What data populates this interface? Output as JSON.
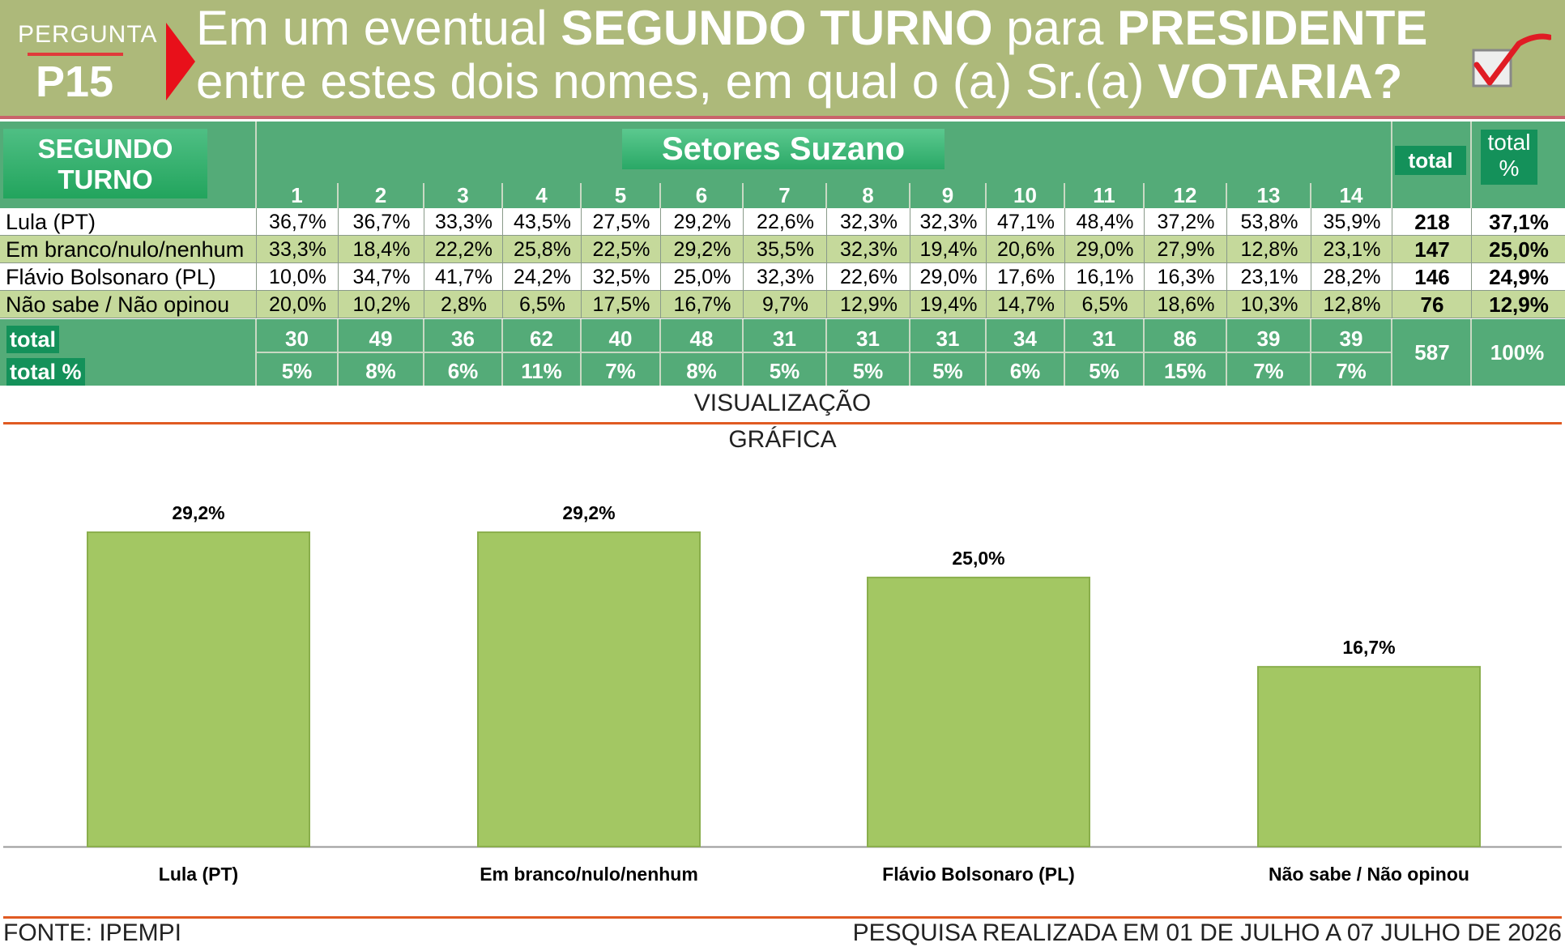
{
  "header": {
    "badge_top": "PERGUNTA",
    "badge_num": "P15",
    "question_line1": [
      "Em um eventual ",
      "SEGUNDO TURNO",
      " para ",
      "PRESIDENTE"
    ],
    "question_line2": [
      "entre estes dois nomes, em qual o (a) Sr.(a) ",
      "VOTARIA?"
    ]
  },
  "table": {
    "corner_label": "SEGUNDO TURNO",
    "group_label": "Setores Suzano",
    "total_label": "total",
    "total_pct_label": "total %",
    "columns": [
      "1",
      "2",
      "3",
      "4",
      "5",
      "6",
      "7",
      "8",
      "9",
      "10",
      "11",
      "12",
      "13",
      "14"
    ],
    "rows": [
      {
        "label": "Lula (PT)",
        "values": [
          "36,7%",
          "36,7%",
          "33,3%",
          "43,5%",
          "27,5%",
          "29,2%",
          "22,6%",
          "32,3%",
          "32,3%",
          "47,1%",
          "48,4%",
          "37,2%",
          "53,8%",
          "35,9%"
        ],
        "total": "218",
        "total_pct": "37,1%"
      },
      {
        "label": "Em branco/nulo/nenhum",
        "values": [
          "33,3%",
          "18,4%",
          "22,2%",
          "25,8%",
          "22,5%",
          "29,2%",
          "35,5%",
          "32,3%",
          "19,4%",
          "20,6%",
          "29,0%",
          "27,9%",
          "12,8%",
          "23,1%"
        ],
        "total": "147",
        "total_pct": "25,0%"
      },
      {
        "label": "Flávio Bolsonaro (PL)",
        "values": [
          "10,0%",
          "34,7%",
          "41,7%",
          "24,2%",
          "32,5%",
          "25,0%",
          "32,3%",
          "22,6%",
          "29,0%",
          "17,6%",
          "16,1%",
          "16,3%",
          "23,1%",
          "28,2%"
        ],
        "total": "146",
        "total_pct": "24,9%"
      },
      {
        "label": "Não sabe / Não opinou",
        "values": [
          "20,0%",
          "10,2%",
          "2,8%",
          "6,5%",
          "17,5%",
          "16,7%",
          "9,7%",
          "12,9%",
          "19,4%",
          "14,7%",
          "6,5%",
          "18,6%",
          "10,3%",
          "12,8%"
        ],
        "total": "76",
        "total_pct": "12,9%"
      }
    ],
    "footer_total_label": "total",
    "footer_totalpct_label": "total %",
    "footer_totals": [
      "30",
      "49",
      "36",
      "62",
      "40",
      "48",
      "31",
      "31",
      "31",
      "34",
      "31",
      "86",
      "39",
      "39"
    ],
    "footer_pcts": [
      "5%",
      "8%",
      "6%",
      "11%",
      "7%",
      "8%",
      "5%",
      "5%",
      "5%",
      "6%",
      "5%",
      "15%",
      "7%",
      "7%"
    ],
    "grand_total": "587",
    "grand_pct": "100%"
  },
  "viz_title_1": "VISUALIZAÇÃO",
  "viz_title_2": "GRÁFICA",
  "chart_data": {
    "type": "bar",
    "categories": [
      "Lula (PT)",
      "Em branco/nulo/nenhum",
      "Flávio Bolsonaro (PL)",
      "Não sabe / Não opinou"
    ],
    "values": [
      29.2,
      29.2,
      25.0,
      16.7
    ],
    "value_labels": [
      "29,2%",
      "29,2%",
      "25,0%",
      "16,7%"
    ],
    "ylim": [
      0,
      35
    ],
    "grid": false,
    "bar_color": "#a3c763"
  },
  "footer": {
    "source": "FONTE: IPEMPI",
    "period": "PESQUISA REALIZADA EM 01 DE JULHO A 07 JULHO DE 2026"
  }
}
